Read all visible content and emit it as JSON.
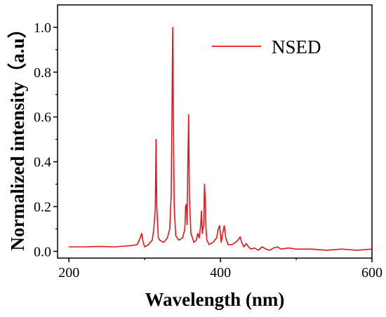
{
  "chart_data": {
    "type": "line",
    "xlabel": "Wavelength (nm)",
    "ylabel": "Normalized intensity（a.u）",
    "xlim": [
      185,
      600
    ],
    "ylim": [
      -0.03,
      1.1
    ],
    "xticks": [
      200,
      400,
      600
    ],
    "xtick_labels": [
      "200",
      "400",
      "600"
    ],
    "yticks": [
      0.0,
      0.2,
      0.4,
      0.6,
      0.8,
      1.0
    ],
    "ytick_labels": [
      "0.0",
      "0.2",
      "0.4",
      "0.6",
      "0.8",
      "1.0"
    ],
    "grid": false,
    "legend_position": "top-right",
    "line_color": "#e8141b",
    "series": [
      {
        "name": "NSED",
        "x": [
          200,
          220,
          240,
          260,
          280,
          290,
          293,
          296,
          298,
          300,
          305,
          310,
          312,
          314,
          315,
          316,
          318,
          320,
          325,
          330,
          333,
          335,
          336,
          337,
          338,
          339,
          341,
          345,
          350,
          353,
          354,
          355,
          356,
          357,
          358,
          359,
          361,
          365,
          368,
          370,
          372,
          374,
          375,
          376,
          378,
          379,
          380,
          381,
          382,
          385,
          390,
          395,
          397,
          399,
          401,
          403,
          405,
          407,
          410,
          415,
          420,
          423,
          426,
          428,
          431,
          434,
          437,
          440,
          445,
          450,
          455,
          460,
          465,
          470,
          475,
          480,
          490,
          500,
          520,
          540,
          560,
          580,
          600
        ],
        "y": [
          0.02,
          0.02,
          0.022,
          0.02,
          0.025,
          0.03,
          0.05,
          0.08,
          0.04,
          0.02,
          0.03,
          0.05,
          0.1,
          0.19,
          0.5,
          0.2,
          0.06,
          0.05,
          0.04,
          0.06,
          0.1,
          0.25,
          0.6,
          1.0,
          0.55,
          0.2,
          0.07,
          0.05,
          0.06,
          0.1,
          0.2,
          0.21,
          0.12,
          0.4,
          0.61,
          0.25,
          0.08,
          0.04,
          0.05,
          0.08,
          0.06,
          0.12,
          0.18,
          0.08,
          0.12,
          0.3,
          0.22,
          0.1,
          0.05,
          0.03,
          0.04,
          0.06,
          0.1,
          0.115,
          0.04,
          0.08,
          0.115,
          0.06,
          0.03,
          0.03,
          0.04,
          0.05,
          0.065,
          0.04,
          0.02,
          0.035,
          0.02,
          0.01,
          0.015,
          0.005,
          0.02,
          0.01,
          0.005,
          0.015,
          0.02,
          0.01,
          0.015,
          0.01,
          0.01,
          0.005,
          0.01,
          0.005,
          0.01
        ]
      }
    ]
  }
}
